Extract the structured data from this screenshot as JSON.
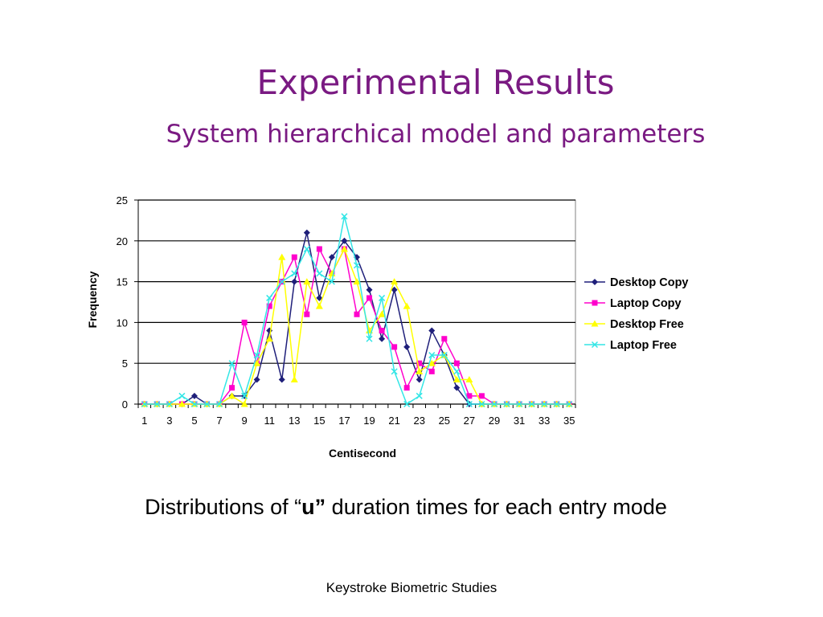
{
  "slide": {
    "title": "Experimental Results",
    "subtitle": "System hierarchical model and parameters",
    "caption_pre": "Distributions of “",
    "caption_bold": "u”",
    "caption_post": " duration times for each entry mode",
    "footer": "Keystroke Biometric Studies"
  },
  "chart_data": {
    "type": "line",
    "xlabel": "Centisecond",
    "ylabel": "Frequency",
    "title": "",
    "x": [
      1,
      2,
      3,
      4,
      5,
      6,
      7,
      8,
      9,
      10,
      11,
      12,
      13,
      14,
      15,
      16,
      17,
      18,
      19,
      20,
      21,
      22,
      23,
      24,
      25,
      26,
      27,
      28,
      29,
      30,
      31,
      32,
      33,
      34,
      35
    ],
    "x_tick_labels": [
      "1",
      "3",
      "5",
      "7",
      "9",
      "11",
      "13",
      "15",
      "17",
      "19",
      "21",
      "23",
      "25",
      "27",
      "29",
      "31",
      "33",
      "35"
    ],
    "ylim": [
      0,
      25
    ],
    "y_ticks": [
      0,
      5,
      10,
      15,
      20,
      25
    ],
    "grid": "horizontal",
    "legend_position": "right",
    "series": [
      {
        "name": "Desktop Copy",
        "color": "#1f1f7a",
        "marker": "diamond",
        "values": [
          0,
          0,
          0,
          0,
          1,
          0,
          0,
          1,
          1,
          3,
          9,
          3,
          15,
          21,
          13,
          18,
          20,
          18,
          14,
          8,
          14,
          7,
          3,
          9,
          6,
          2,
          0,
          0,
          0,
          0,
          0,
          0,
          0,
          0,
          0
        ]
      },
      {
        "name": "Laptop Copy",
        "color": "#ff00cc",
        "marker": "square",
        "values": [
          0,
          0,
          0,
          0,
          0,
          0,
          0,
          2,
          10,
          5,
          12,
          15,
          18,
          11,
          19,
          16,
          19,
          11,
          13,
          9,
          7,
          2,
          5,
          4,
          8,
          5,
          1,
          1,
          0,
          0,
          0,
          0,
          0,
          0,
          0
        ]
      },
      {
        "name": "Desktop Free",
        "color": "#ffff00",
        "marker": "triangle",
        "values": [
          0,
          0,
          0,
          0,
          0,
          0,
          0,
          1,
          0,
          5,
          8,
          18,
          3,
          15,
          12,
          16,
          19,
          15,
          9,
          11,
          15,
          12,
          4,
          5,
          6,
          3,
          3,
          0,
          0,
          0,
          0,
          0,
          0,
          0,
          0
        ]
      },
      {
        "name": "Laptop Free",
        "color": "#33e6e6",
        "marker": "x",
        "values": [
          0,
          0,
          0,
          1,
          0,
          0,
          0,
          5,
          1,
          6,
          13,
          15,
          16,
          19,
          16,
          15,
          23,
          17,
          8,
          13,
          4,
          0,
          1,
          6,
          6,
          4,
          0,
          0,
          0,
          0,
          0,
          0,
          0,
          0,
          0
        ]
      }
    ]
  }
}
